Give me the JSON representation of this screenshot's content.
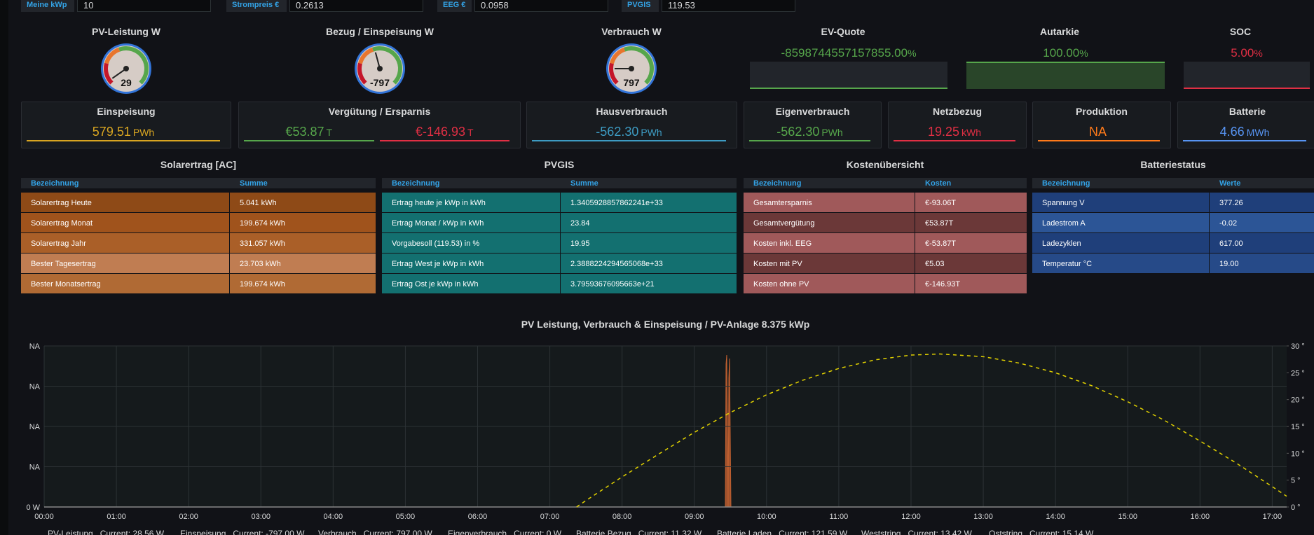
{
  "variables": [
    {
      "label": "Meine kWp",
      "value": "10"
    },
    {
      "label": "Strompreis €",
      "value": "0.2613"
    },
    {
      "label": "EEG €",
      "value": "0.0958"
    },
    {
      "label": "PVGIS",
      "value": "119.53"
    }
  ],
  "gauges": [
    {
      "title": "PV-Leistung W",
      "value": "29"
    },
    {
      "title": "Bezug / Einspeisung W",
      "value": "-797"
    },
    {
      "title": "Verbrauch W",
      "value": "797"
    }
  ],
  "bargauges": [
    {
      "title": "EV-Quote",
      "value": "-8598744557157855.00",
      "unit": "%",
      "color": "#56a64b"
    },
    {
      "title": "Autarkie",
      "value": "100.00",
      "unit": "%",
      "color": "#56a64b"
    },
    {
      "title": "SOC",
      "value": "5.00",
      "unit": "%",
      "color": "#e02f44"
    }
  ],
  "stats": [
    {
      "title": "Einspeisung",
      "items": [
        {
          "value": "579.51",
          "unit": "PWh",
          "color": "#d8a521"
        }
      ]
    },
    {
      "title": "Vergütung / Ersparnis",
      "items": [
        {
          "value": "€53.87",
          "unit": "T",
          "color": "#56a64b"
        },
        {
          "value": "€-146.93",
          "unit": "T",
          "color": "#e02f44"
        }
      ]
    },
    {
      "title": "Hausverbrauch",
      "items": [
        {
          "value": "-562.30",
          "unit": "PWh",
          "color": "#3d9bc2"
        }
      ]
    },
    {
      "title": "Eigenverbrauch",
      "items": [
        {
          "value": "-562.30",
          "unit": "PWh",
          "color": "#56a64b"
        }
      ]
    },
    {
      "title": "Netzbezug",
      "items": [
        {
          "value": "19.25",
          "unit": "kWh",
          "color": "#e02f44"
        }
      ]
    },
    {
      "title": "Produktion",
      "items": [
        {
          "value": "NA",
          "unit": "",
          "color": "#ff7a1a"
        }
      ]
    },
    {
      "title": "Batterie",
      "items": [
        {
          "value": "4.66",
          "unit": "MWh",
          "color": "#5794f2"
        }
      ]
    }
  ],
  "tables": [
    {
      "title": "Solarertrag [AC]",
      "columns": [
        "Bezeichnung",
        "Summe"
      ],
      "colors": [
        "#8e4a17",
        "#a0531c",
        "#aa5f28",
        "#c07d52",
        "#b06a34"
      ],
      "rows": [
        [
          "Solarertrag Heute",
          "5.041 kWh"
        ],
        [
          "Solarertrag Monat",
          "199.674 kWh"
        ],
        [
          "Solarertrag Jahr",
          "331.057 kWh"
        ],
        [
          "Bester Tagesertrag",
          "23.703 kWh"
        ],
        [
          "Bester Monatsertrag",
          "199.674 kWh"
        ]
      ]
    },
    {
      "title": "PVGIS",
      "columns": [
        "Bezeichnung",
        "Summe"
      ],
      "colors": [
        "#137070",
        "#137070",
        "#137070",
        "#137070",
        "#137070"
      ],
      "rows": [
        [
          "Ertrag heute je kWp in kWh",
          "1.3405928857862241e+33"
        ],
        [
          "Ertrag Monat / kWp in kWh",
          "23.84"
        ],
        [
          "Vorgabesoll (119.53) in %",
          "19.95"
        ],
        [
          "Ertrag West je kWp in kWh",
          "2.3888224294565068e+33"
        ],
        [
          "Ertrag Ost je kWp in kWh",
          "3.79593676095663e+21"
        ]
      ]
    },
    {
      "title": "Kostenübersicht",
      "columns": [
        "Bezeichnung",
        "Kosten"
      ],
      "colors": [
        "#a0595a",
        "#6b3838",
        "#a0595a",
        "#6b3838",
        "#a0595a"
      ],
      "rows": [
        [
          "Gesamtersparnis",
          "€-93.06T"
        ],
        [
          "Gesamtvergütung",
          "€53.87T"
        ],
        [
          "Kosten inkl. EEG",
          "€-53.87T"
        ],
        [
          "Kosten mit PV",
          "€5.03"
        ],
        [
          "Kosten ohne PV",
          "€-146.93T"
        ]
      ]
    },
    {
      "title": "Batteriestatus",
      "columns": [
        "Bezeichnung",
        "Werte"
      ],
      "colors": [
        "#1f3f7a",
        "#2c5596",
        "#1f3f7a",
        "#264a88"
      ],
      "rows": [
        [
          "Spannung V",
          "377.26"
        ],
        [
          "Ladestrom A",
          "-0.02"
        ],
        [
          "Ladezyklen",
          "617.00"
        ],
        [
          "Temperatur °C",
          "19.00"
        ]
      ]
    }
  ],
  "graph": {
    "title": "PV Leistung, Verbrauch & Einspeisung / PV-Anlage 8.375 kWp",
    "left_ticks": [
      "NA",
      "NA",
      "NA",
      "NA",
      "0 W"
    ],
    "xlim": [
      0,
      17.2
    ],
    "xticks": [
      {
        "value": 0,
        "label": "00:00"
      },
      {
        "value": 1,
        "label": "01:00"
      },
      {
        "value": 2,
        "label": "02:00"
      },
      {
        "value": 3,
        "label": "03:00"
      },
      {
        "value": 4,
        "label": "04:00"
      },
      {
        "value": 5,
        "label": "05:00"
      },
      {
        "value": 6,
        "label": "06:00"
      },
      {
        "value": 7,
        "label": "07:00"
      },
      {
        "value": 8,
        "label": "08:00"
      },
      {
        "value": 9,
        "label": "09:00"
      },
      {
        "value": 10,
        "label": "10:00"
      },
      {
        "value": 11,
        "label": "11:00"
      },
      {
        "value": 12,
        "label": "12:00"
      },
      {
        "value": 13,
        "label": "13:00"
      },
      {
        "value": 14,
        "label": "14:00"
      },
      {
        "value": 15,
        "label": "15:00"
      },
      {
        "value": 16,
        "label": "16:00"
      },
      {
        "value": 17,
        "label": "17:00"
      }
    ],
    "y2lim": [
      0,
      30
    ],
    "y2ticks": [
      {
        "value": 30,
        "label": "30 °"
      },
      {
        "value": 25,
        "label": "25 °"
      },
      {
        "value": 20,
        "label": "20 °"
      },
      {
        "value": 15,
        "label": "15 °"
      },
      {
        "value": 10,
        "label": "10 °"
      },
      {
        "value": 5,
        "label": "5 °"
      },
      {
        "value": 0,
        "label": "0 °"
      }
    ],
    "sun": {
      "color": "#e0d000",
      "x": [
        7.37,
        7.5,
        8,
        8.5,
        9,
        9.5,
        10,
        10.5,
        11,
        11.5,
        12,
        12.4,
        13,
        13.5,
        14,
        14.5,
        15,
        15.5,
        16,
        16.5,
        17,
        17.2
      ],
      "values": [
        0,
        1.2,
        5.6,
        9.8,
        13.9,
        17.6,
        20.9,
        23.6,
        25.8,
        27.4,
        28.3,
        28.5,
        28.0,
        26.8,
        25.0,
        22.6,
        19.6,
        16.2,
        12.3,
        8.2,
        3.8,
        2.0
      ]
    },
    "legend": [
      {
        "name": "PV-Leistung",
        "current": "Current: 28.56 W"
      },
      {
        "name": "Einspeisung",
        "current": "Current: -797.00 W"
      },
      {
        "name": "Verbrauch",
        "current": "Current: 797.00 W"
      },
      {
        "name": "Eigenverbrauch",
        "current": "Current: 0 W"
      },
      {
        "name": "Batterie Bezug",
        "current": "Current: 11.32 W"
      },
      {
        "name": "Batterie Laden",
        "current": "Current: 121.59 W"
      },
      {
        "name": "Weststring",
        "current": "Current: 13.42 W"
      },
      {
        "name": "Oststring",
        "current": "Current: 15.14 W"
      }
    ]
  }
}
